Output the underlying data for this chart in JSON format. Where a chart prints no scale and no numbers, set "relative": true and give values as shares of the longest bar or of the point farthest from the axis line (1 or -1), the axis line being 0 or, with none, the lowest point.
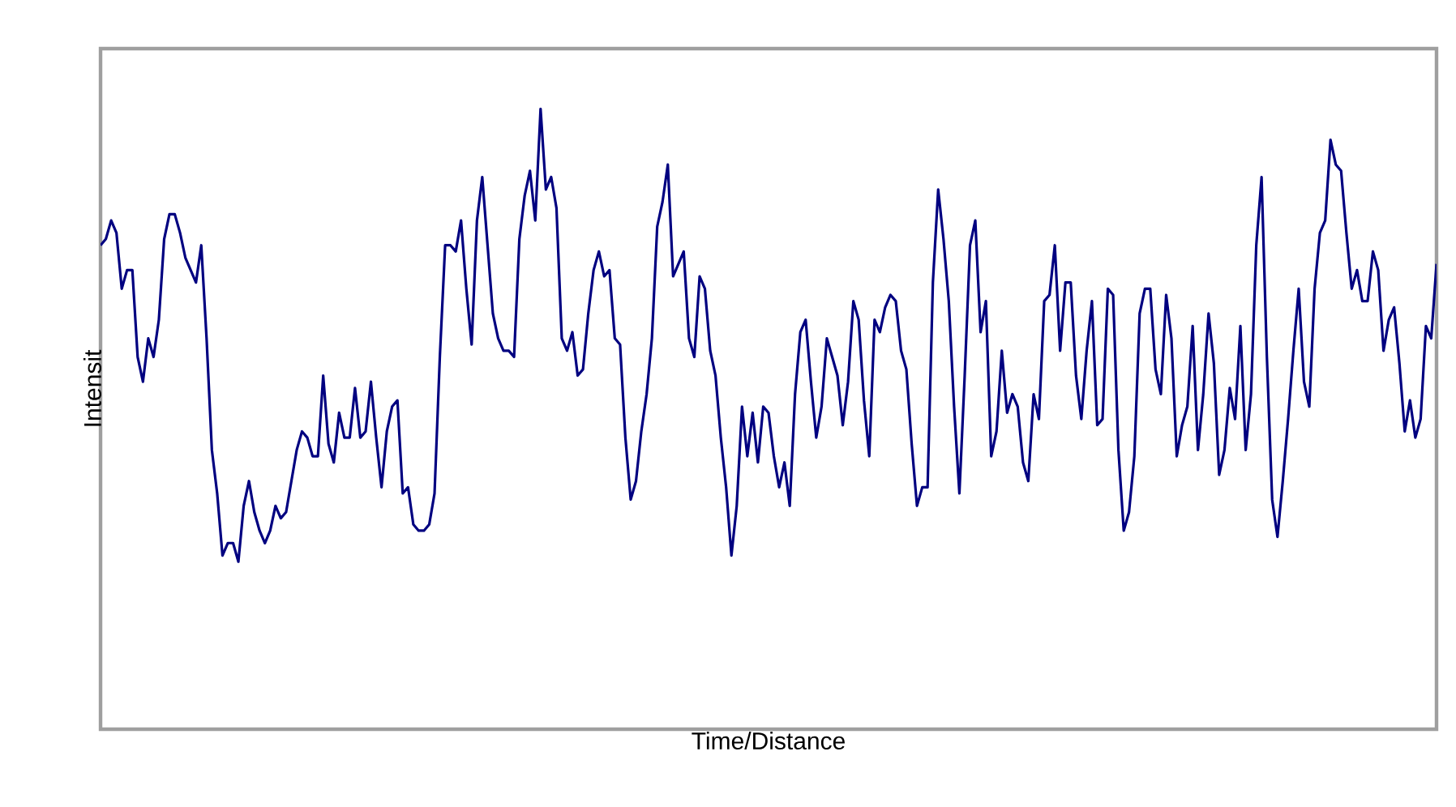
{
  "chart_data": {
    "type": "line",
    "relative": true,
    "xlabel": "Time/Distance",
    "ylabel": "Intensit",
    "color": "#000080",
    "categories": [
      null,
      null,
      null,
      null,
      null,
      null,
      null,
      null,
      null,
      null,
      null,
      null,
      null,
      null,
      null,
      null,
      null,
      null,
      null,
      null,
      null,
      null,
      null,
      null,
      null,
      null,
      null,
      null,
      null,
      null,
      null,
      null,
      null,
      null,
      null,
      null,
      null,
      null,
      null,
      null,
      null,
      null,
      null,
      null,
      null,
      null,
      null,
      null,
      null,
      null,
      null,
      null,
      null,
      null,
      null,
      null,
      null,
      null,
      null,
      null,
      null,
      null,
      null,
      null,
      null,
      null,
      null,
      null,
      null,
      null,
      null,
      null,
      null,
      null,
      null,
      null,
      null,
      null,
      null,
      null,
      null,
      null,
      null,
      null,
      null,
      null,
      null,
      null,
      null,
      null,
      null,
      null,
      null,
      null,
      null,
      null,
      null,
      null,
      null,
      null,
      null,
      null,
      null,
      null,
      null,
      null,
      null,
      null,
      null,
      null,
      null,
      null,
      null,
      null,
      null,
      null,
      null,
      null,
      null,
      null,
      null,
      null,
      null,
      null,
      null,
      null,
      null,
      null,
      null,
      null,
      null,
      null,
      null,
      null,
      null,
      null,
      null,
      null,
      null,
      null,
      null,
      null,
      null,
      null,
      null,
      null,
      null,
      null,
      null,
      null,
      null,
      null,
      null,
      null,
      null,
      null,
      null,
      null,
      null,
      null,
      null,
      null,
      null,
      null,
      null,
      null,
      null,
      null,
      null,
      null,
      null,
      null,
      null,
      null,
      null,
      null,
      null,
      null,
      null,
      null,
      null,
      null,
      null,
      null,
      null,
      null,
      null,
      null,
      null,
      null,
      null,
      null,
      null,
      null,
      null,
      null,
      null,
      null,
      null,
      null,
      null,
      null,
      null,
      null,
      null,
      null,
      null,
      null,
      null,
      null,
      null,
      null,
      null,
      null,
      null,
      null,
      null,
      null,
      null,
      null,
      null,
      null,
      null,
      null,
      null,
      null,
      null,
      null,
      null,
      null,
      null,
      null,
      null,
      null,
      null,
      null,
      null,
      null,
      null,
      null,
      null,
      null,
      null,
      null,
      null,
      null,
      null,
      null,
      null,
      null,
      null,
      null,
      null
    ],
    "values": [
      0.78,
      0.79,
      0.82,
      0.8,
      0.71,
      0.74,
      0.74,
      0.6,
      0.56,
      0.63,
      0.6,
      0.66,
      0.79,
      0.83,
      0.83,
      0.8,
      0.76,
      0.74,
      0.72,
      0.78,
      0.63,
      0.45,
      0.38,
      0.28,
      0.3,
      0.3,
      0.27,
      0.36,
      0.4,
      0.35,
      0.32,
      0.3,
      0.32,
      0.36,
      0.34,
      0.35,
      0.4,
      0.45,
      0.48,
      0.47,
      0.44,
      0.44,
      0.57,
      0.46,
      0.43,
      0.51,
      0.47,
      0.47,
      0.55,
      0.47,
      0.48,
      0.56,
      0.47,
      0.39,
      0.48,
      0.52,
      0.53,
      0.38,
      0.39,
      0.33,
      0.32,
      0.32,
      0.33,
      0.38,
      0.6,
      0.78,
      0.78,
      0.77,
      0.82,
      0.71,
      0.62,
      0.82,
      0.89,
      0.78,
      0.67,
      0.63,
      0.61,
      0.61,
      0.6,
      0.79,
      0.86,
      0.9,
      0.82,
      1,
      0.87,
      0.89,
      0.84,
      0.63,
      0.61,
      0.64,
      0.57,
      0.58,
      0.67,
      0.74,
      0.77,
      0.73,
      0.74,
      0.63,
      0.62,
      0.47,
      0.37,
      0.4,
      0.48,
      0.54,
      0.63,
      0.81,
      0.85,
      0.91,
      0.73,
      0.75,
      0.77,
      0.63,
      0.6,
      0.73,
      0.71,
      0.61,
      0.57,
      0.47,
      0.39,
      0.28,
      0.36,
      0.52,
      0.44,
      0.51,
      0.43,
      0.52,
      0.51,
      0.44,
      0.39,
      0.43,
      0.36,
      0.54,
      0.64,
      0.66,
      0.56,
      0.47,
      0.52,
      0.63,
      0.6,
      0.57,
      0.49,
      0.56,
      0.69,
      0.66,
      0.53,
      0.44,
      0.66,
      0.64,
      0.68,
      0.7,
      0.69,
      0.61,
      0.58,
      0.46,
      0.36,
      0.39,
      0.39,
      0.72,
      0.87,
      0.79,
      0.69,
      0.52,
      0.38,
      0.57,
      0.78,
      0.82,
      0.64,
      0.69,
      0.44,
      0.48,
      0.61,
      0.51,
      0.54,
      0.52,
      0.43,
      0.4,
      0.54,
      0.5,
      0.69,
      0.7,
      0.78,
      0.61,
      0.72,
      0.72,
      0.57,
      0.5,
      0.61,
      0.69,
      0.49,
      0.5,
      0.71,
      0.7,
      0.45,
      0.32,
      0.35,
      0.44,
      0.67,
      0.71,
      0.71,
      0.58,
      0.54,
      0.7,
      0.63,
      0.44,
      0.49,
      0.52,
      0.65,
      0.45,
      0.54,
      0.67,
      0.59,
      0.41,
      0.45,
      0.55,
      0.5,
      0.65,
      0.45,
      0.54,
      0.78,
      0.89,
      0.6,
      0.37,
      0.31,
      0.4,
      0.5,
      0.61,
      0.71,
      0.56,
      0.52,
      0.71,
      0.8,
      0.82,
      0.95,
      0.91,
      0.9,
      0.8,
      0.71,
      0.74,
      0.69,
      0.69,
      0.77,
      0.74,
      0.61,
      0.66,
      0.68,
      0.59,
      0.48,
      0.53,
      0.47,
      0.5,
      0.65,
      0.63,
      0.75
    ]
  }
}
